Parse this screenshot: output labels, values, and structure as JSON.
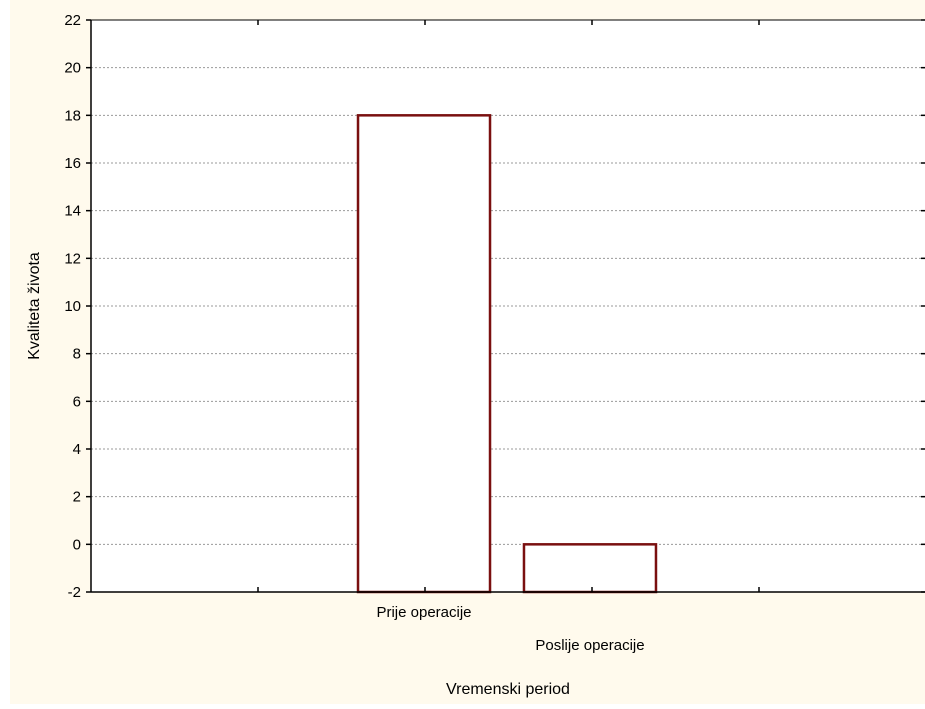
{
  "colors": {
    "page_background": "#ffffff",
    "figure_background": "#fffaed",
    "plot_background": "#ffffff",
    "bar_fill": "#ffffff",
    "bar_stroke": "#7a1010",
    "grid": "#999999",
    "axis": "#000000"
  },
  "chart_data": {
    "type": "bar",
    "categories": [
      "Prije operacije",
      "Poslije operacije"
    ],
    "values": [
      18,
      0
    ],
    "baseline": -2,
    "xlabel": "Vremenski period",
    "ylabel": "Kvaliteta života",
    "ylim": [
      -2,
      22
    ],
    "yticks": [
      -2,
      0,
      2,
      4,
      6,
      8,
      10,
      12,
      14,
      16,
      18,
      20,
      22
    ],
    "grid": "horizontal dashed",
    "legend": "none"
  }
}
